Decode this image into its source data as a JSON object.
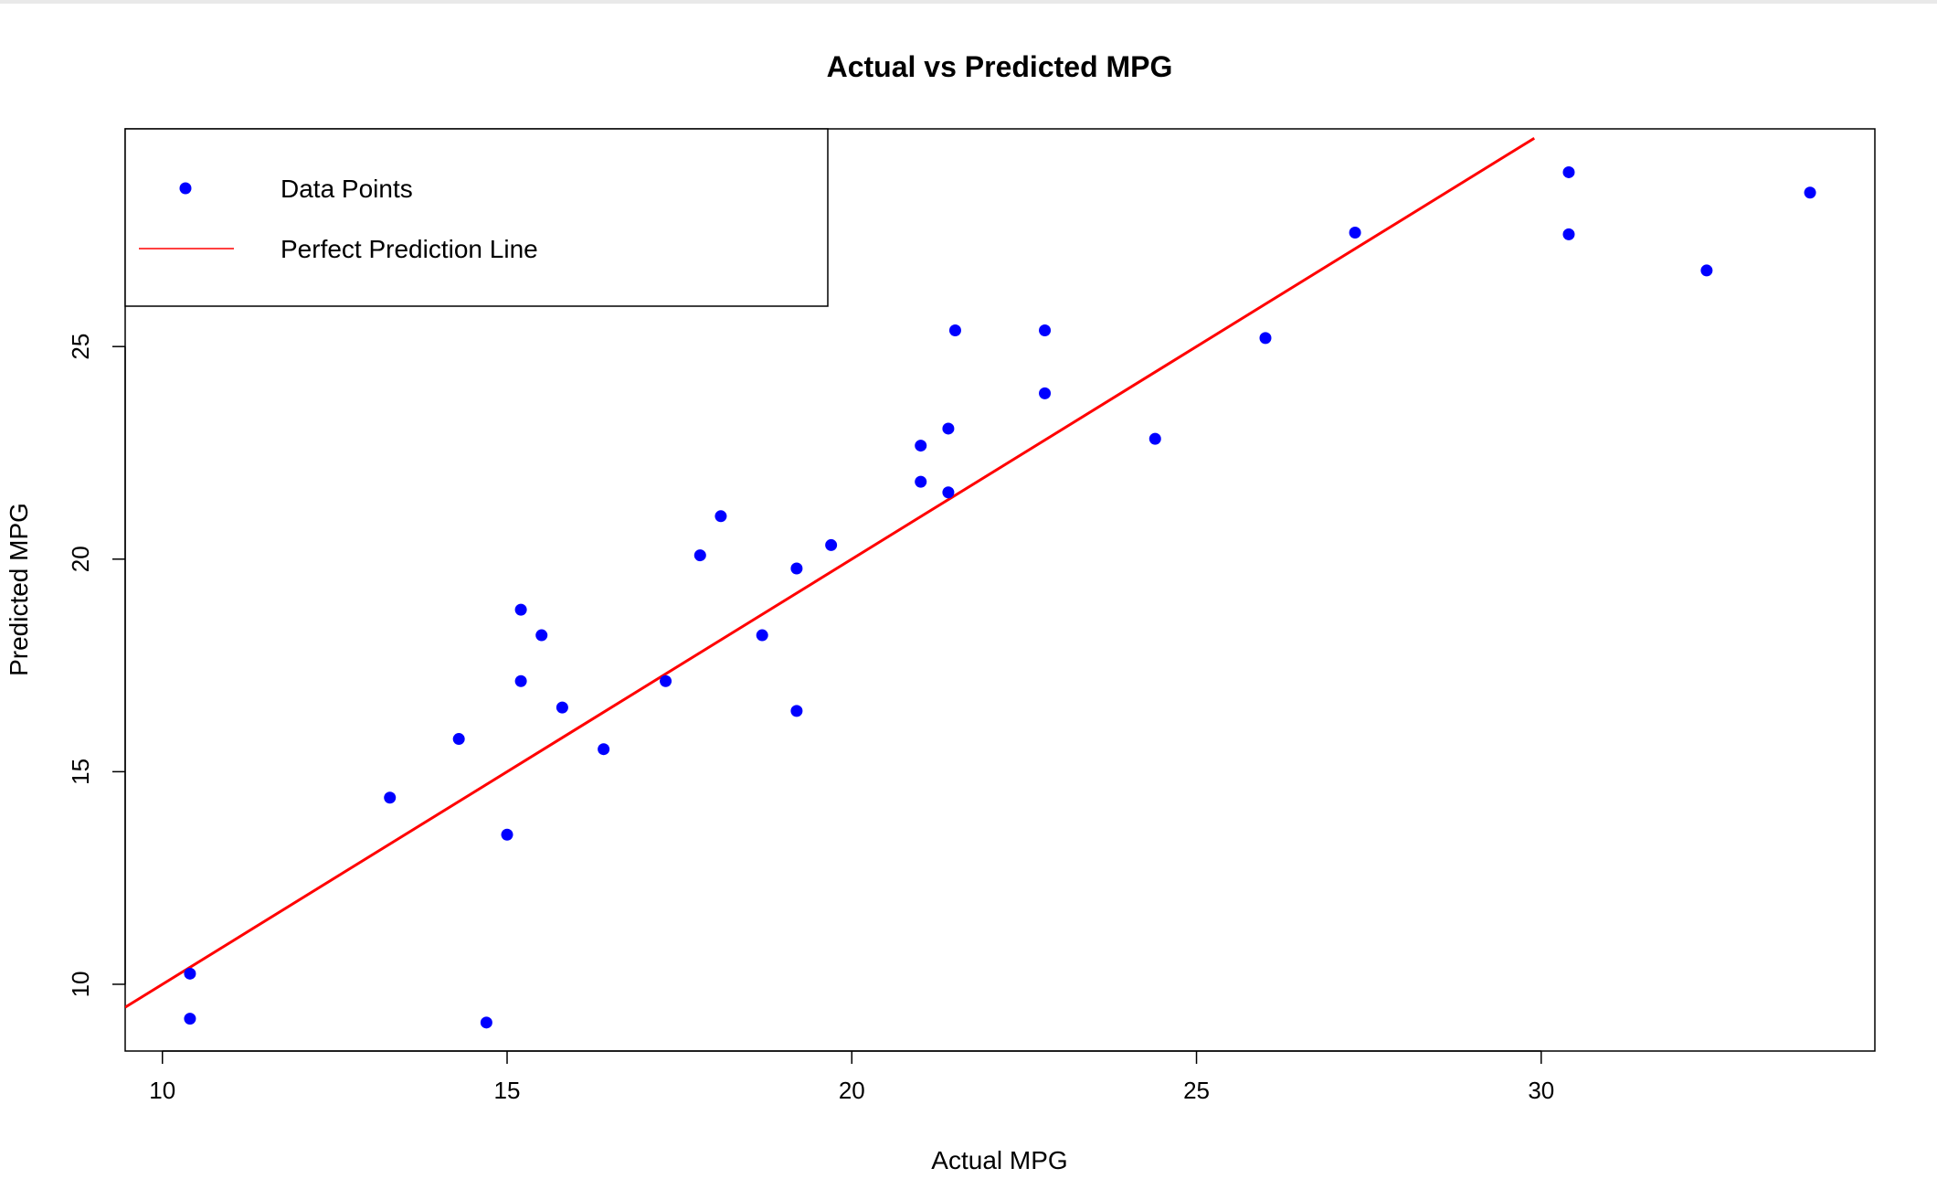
{
  "chart_data": {
    "type": "scatter",
    "title": "Actual vs Predicted MPG",
    "xlabel": "Actual MPG",
    "ylabel": "Predicted MPG",
    "xlim": [
      9.46,
      34.84
    ],
    "ylim": [
      8.43,
      30.12
    ],
    "xticks": [
      10,
      15,
      20,
      25,
      30
    ],
    "yticks": [
      10,
      15,
      20,
      25
    ],
    "grid": false,
    "legend": {
      "placement": "top-left",
      "entries": [
        {
          "label": "Data Points",
          "kind": "point",
          "color": "#0000ff"
        },
        {
          "label": "Perfect Prediction Line",
          "kind": "line",
          "color": "#ff0000"
        }
      ]
    },
    "series": [
      {
        "color": "#0000ff",
        "kind": "points",
        "x": [
          10.4,
          10.4,
          13.3,
          14.3,
          14.7,
          15.0,
          15.2,
          15.2,
          15.5,
          15.8,
          16.4,
          17.3,
          17.8,
          18.1,
          18.7,
          19.2,
          19.2,
          19.7,
          21.0,
          21.0,
          21.4,
          21.4,
          21.5,
          22.8,
          22.8,
          24.4,
          26.0,
          27.3,
          30.4,
          30.4,
          32.4,
          33.9
        ],
        "y": [
          10.25,
          9.19,
          14.39,
          15.77,
          9.1,
          13.52,
          17.13,
          18.81,
          18.21,
          16.51,
          15.53,
          17.13,
          20.09,
          21.01,
          18.21,
          19.78,
          16.43,
          20.33,
          22.67,
          21.82,
          23.07,
          21.57,
          25.38,
          25.38,
          23.9,
          22.83,
          25.2,
          27.68,
          29.1,
          27.64,
          26.79,
          28.62
        ]
      },
      {
        "color": "#ff0000",
        "kind": "line",
        "x": [
          9.46,
          29.9
        ],
        "y": [
          9.46,
          29.9
        ]
      }
    ]
  }
}
